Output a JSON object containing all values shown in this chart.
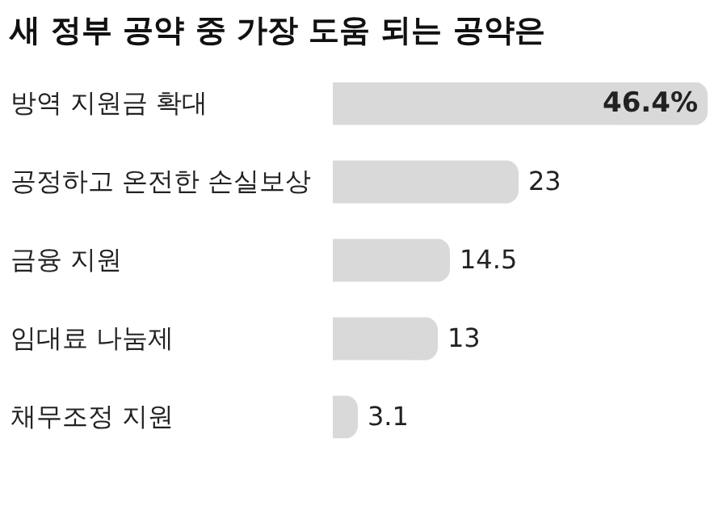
{
  "chart_data": {
    "type": "bar",
    "orientation": "horizontal",
    "title": "새 정부 공약 중 가장 도움 되는 공약은",
    "categories": [
      "방역 지원금 확대",
      "공정하고 온전한 손실보상",
      "금융 지원",
      "임대료 나눔제",
      "채무조정 지원"
    ],
    "values": [
      46.4,
      23,
      14.5,
      13,
      3.1
    ],
    "value_labels": [
      "46.4%",
      "23",
      "14.5",
      "13",
      "3.1"
    ],
    "color": "#d9d9d9"
  }
}
